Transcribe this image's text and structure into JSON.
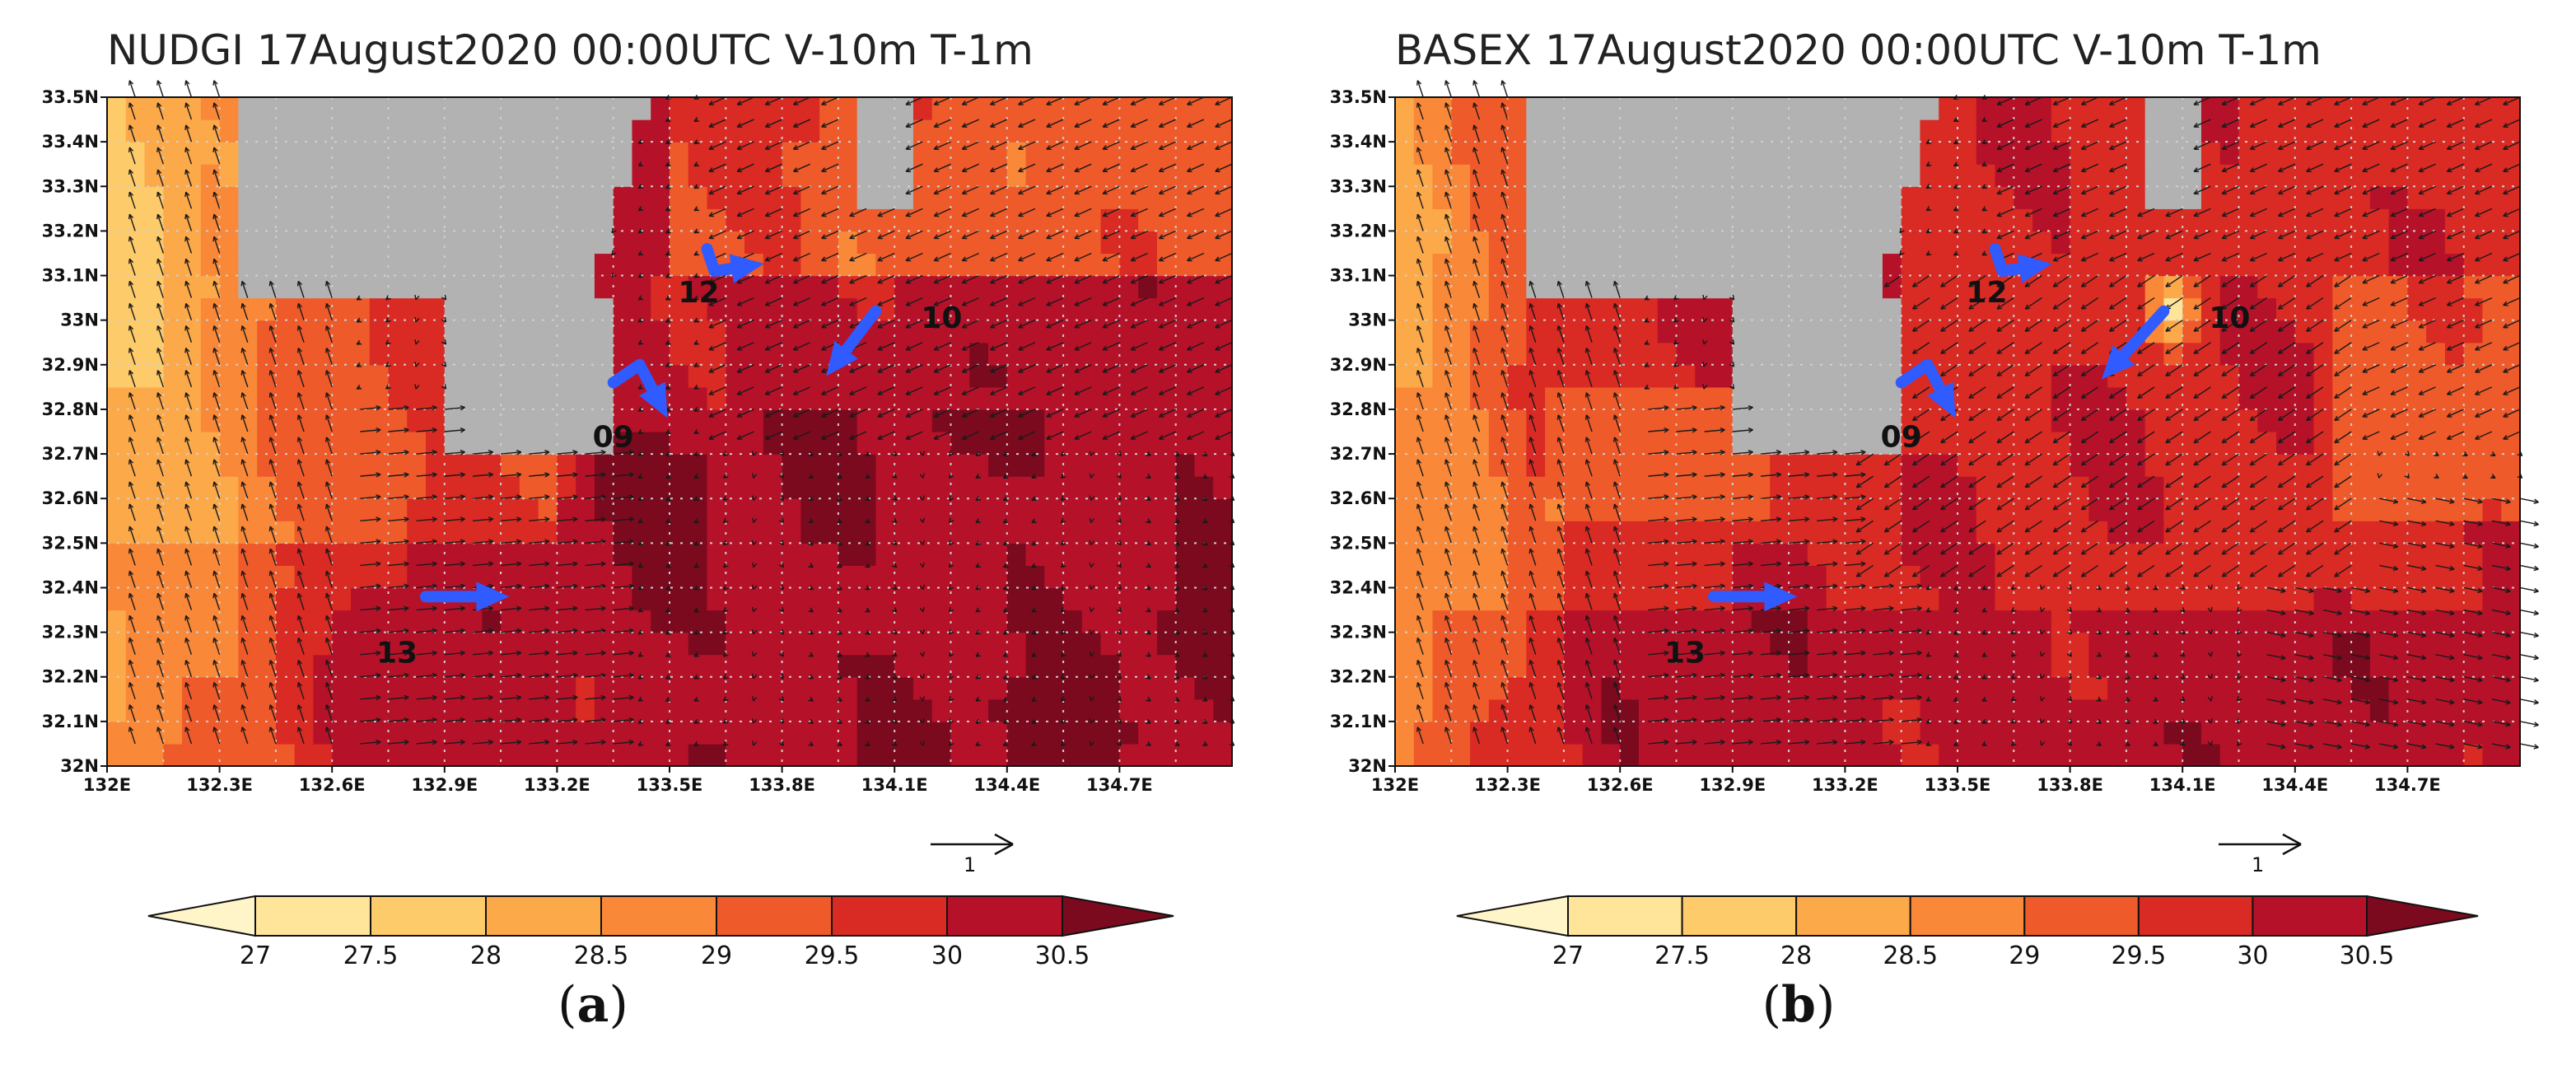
{
  "chart_data": [
    {
      "type": "heatmap",
      "title": "NUDGI 17August2020 00:00UTC V-10m T-1m",
      "caption": "a",
      "xlim": [
        132.0,
        135.0
      ],
      "ylim": [
        32.0,
        33.5
      ],
      "x_ticks": [
        "132E",
        "132.3E",
        "132.6E",
        "132.9E",
        "133.2E",
        "133.5E",
        "133.8E",
        "134.1E",
        "134.4E",
        "134.7E"
      ],
      "y_ticks": [
        "32N",
        "32.1N",
        "32.2N",
        "32.3N",
        "32.4N",
        "32.5N",
        "32.6N",
        "32.7N",
        "32.8N",
        "32.9N",
        "33N",
        "33.1N",
        "33.2N",
        "33.3N",
        "33.4N",
        "33.5N"
      ],
      "grid": true,
      "vector_reference": {
        "label": "1",
        "magnitude": 1
      },
      "colorbar": {
        "levels": [
          27,
          27.5,
          28,
          28.5,
          29,
          29.5,
          30,
          30.5
        ],
        "labels": [
          "27",
          "27.5",
          "28",
          "28.5",
          "29",
          "29.5",
          "30",
          "30.5"
        ],
        "colors": [
          "#fff5c8",
          "#ffe59a",
          "#fecb6a",
          "#fca94a",
          "#f98838",
          "#ef5a2a",
          "#d92a24",
          "#b5122a",
          "#7c0a1e"
        ],
        "extend": "both"
      },
      "trajectories": [
        {
          "label": "09",
          "lon": [
            133.35,
            133.42,
            133.47
          ],
          "lat": [
            32.86,
            32.9,
            32.82
          ]
        },
        {
          "label": "12",
          "lon": [
            133.6,
            133.62,
            133.7
          ],
          "lat": [
            33.16,
            33.11,
            33.12
          ]
        },
        {
          "label": "10",
          "lon": [
            134.05,
            133.95
          ],
          "lat": [
            33.02,
            32.91
          ]
        },
        {
          "label": "13",
          "lon": [
            132.85,
            133.02
          ],
          "lat": [
            32.38,
            32.38
          ]
        }
      ]
    },
    {
      "type": "heatmap",
      "title": "BASEX 17August2020 00:00UTC V-10m T-1m",
      "caption": "b",
      "xlim": [
        132.0,
        135.0
      ],
      "ylim": [
        32.0,
        33.5
      ],
      "x_ticks": [
        "132E",
        "132.3E",
        "132.6E",
        "132.9E",
        "133.2E",
        "133.5E",
        "133.8E",
        "134.1E",
        "134.4E",
        "134.7E"
      ],
      "y_ticks": [
        "32N",
        "32.1N",
        "32.2N",
        "32.3N",
        "32.4N",
        "32.5N",
        "32.6N",
        "32.7N",
        "32.8N",
        "32.9N",
        "33N",
        "33.1N",
        "33.2N",
        "33.3N",
        "33.4N",
        "33.5N"
      ],
      "grid": true,
      "vector_reference": {
        "label": "1",
        "magnitude": 1
      },
      "colorbar": {
        "levels": [
          27,
          27.5,
          28,
          28.5,
          29,
          29.5,
          30,
          30.5
        ],
        "labels": [
          "27",
          "27.5",
          "28",
          "28.5",
          "29",
          "29.5",
          "30",
          "30.5"
        ],
        "colors": [
          "#fff5c8",
          "#ffe59a",
          "#fecb6a",
          "#fca94a",
          "#f98838",
          "#ef5a2a",
          "#d92a24",
          "#b5122a",
          "#7c0a1e"
        ],
        "extend": "both"
      },
      "trajectories": [
        {
          "label": "09",
          "lon": [
            133.35,
            133.42,
            133.47
          ],
          "lat": [
            32.86,
            32.9,
            32.82
          ]
        },
        {
          "label": "12",
          "lon": [
            133.6,
            133.62,
            133.7
          ],
          "lat": [
            33.16,
            33.11,
            33.12
          ]
        },
        {
          "label": "10",
          "lon": [
            134.05,
            133.92
          ],
          "lat": [
            33.02,
            32.9
          ]
        },
        {
          "label": "13",
          "lon": [
            132.85,
            133.02
          ],
          "lat": [
            32.38,
            32.38
          ]
        }
      ]
    }
  ]
}
